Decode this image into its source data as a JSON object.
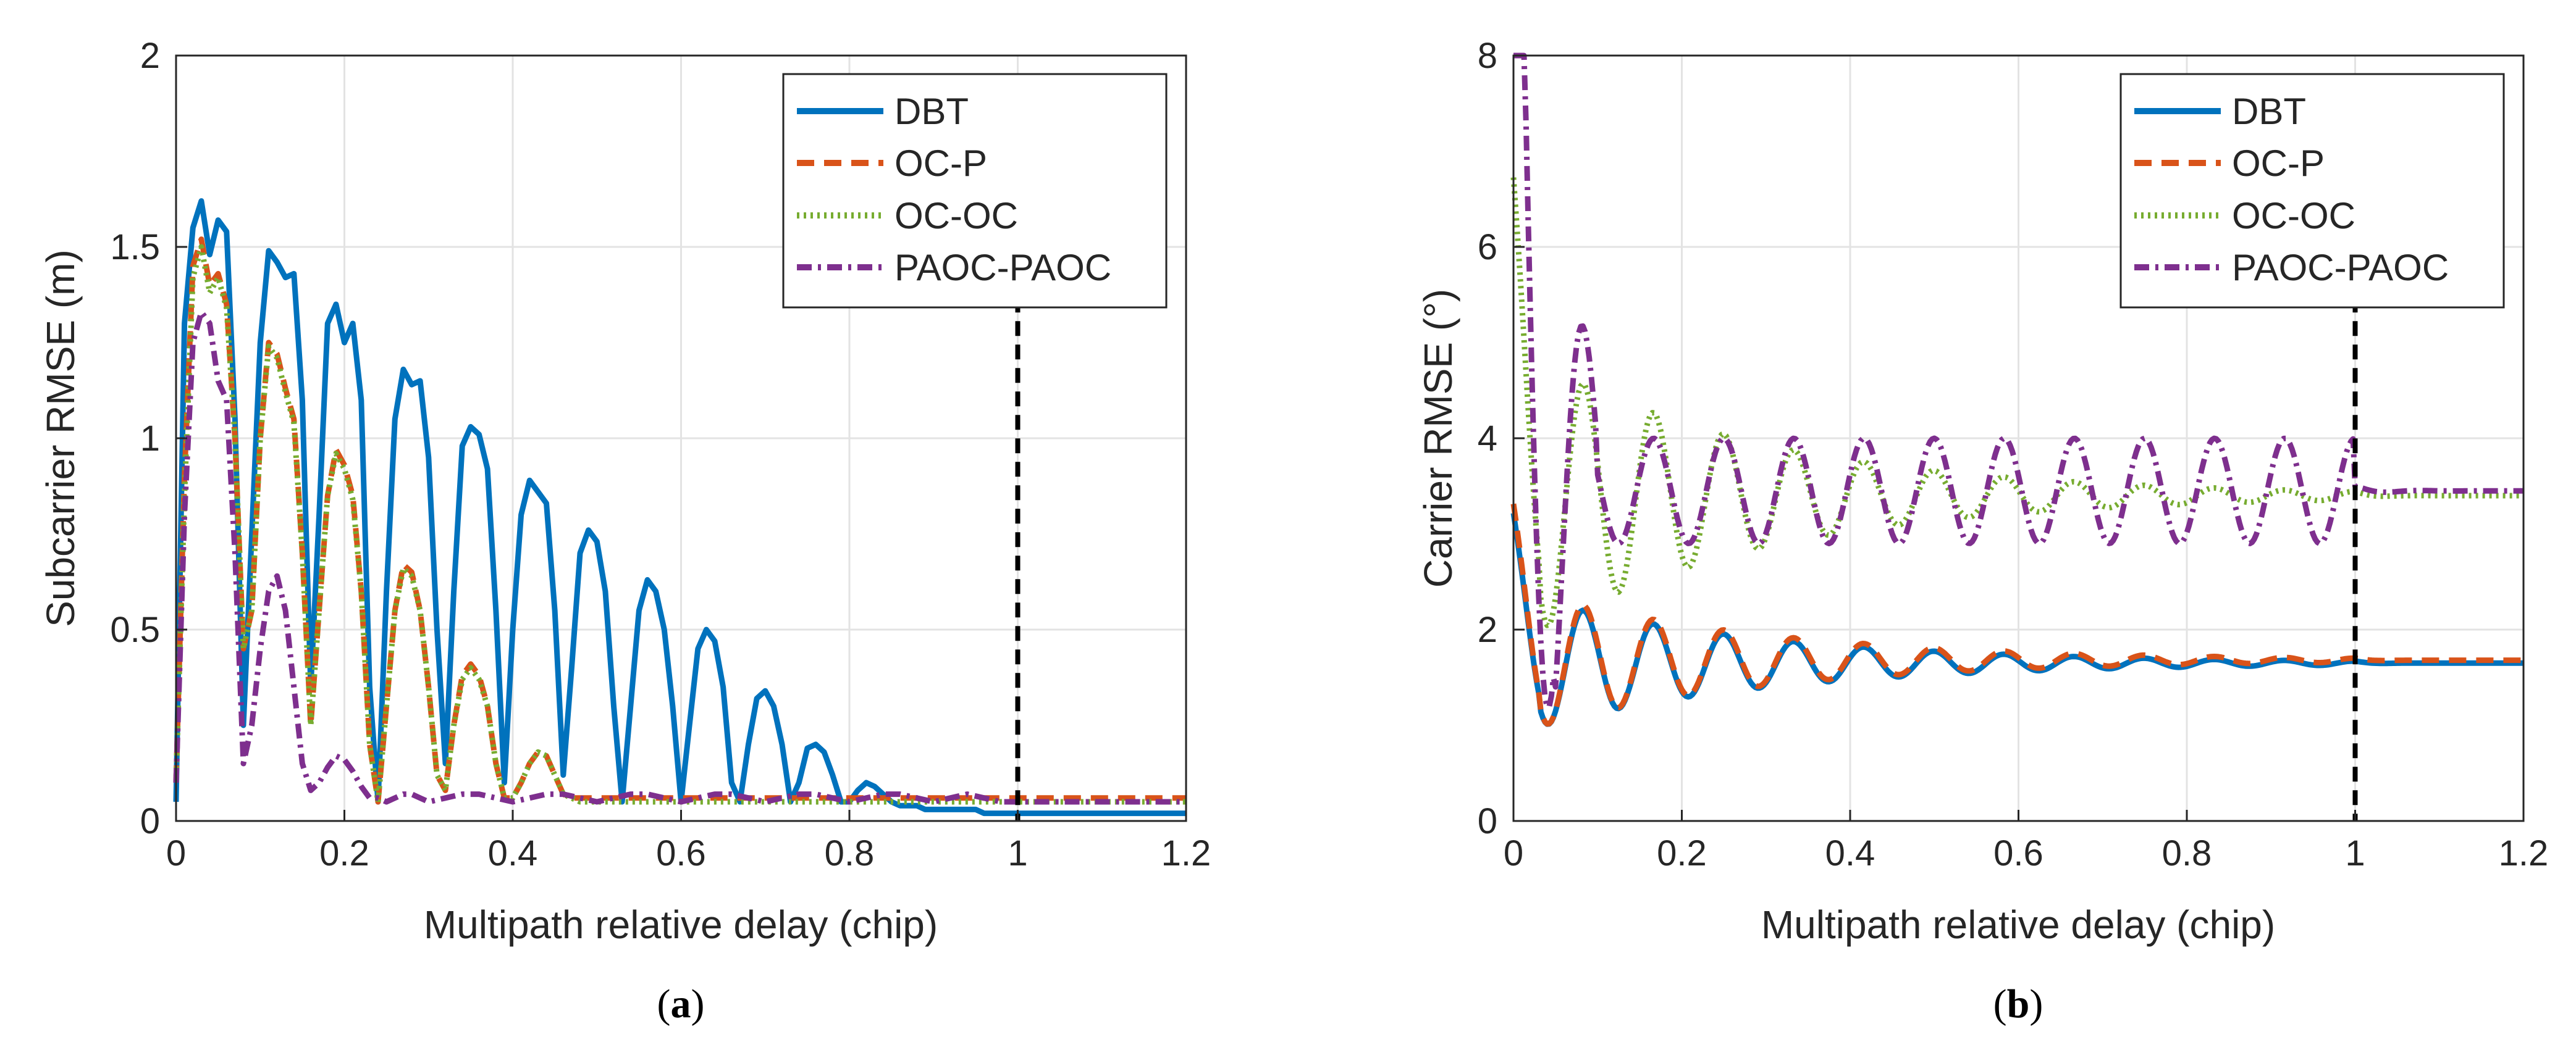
{
  "captions": [
    {
      "open": "(",
      "letter": "a",
      "close": ")"
    },
    {
      "open": "(",
      "letter": "b",
      "close": ")"
    }
  ],
  "chart_data": [
    {
      "type": "line",
      "title": "",
      "caption": "(a)",
      "xlabel": "Multipath relative delay (chip)",
      "ylabel": "Subcarrier RMSE (m)",
      "xlim": [
        0,
        1.2
      ],
      "ylim": [
        0,
        2
      ],
      "xticks": [
        0,
        0.2,
        0.4,
        0.6,
        0.8,
        1,
        1.2
      ],
      "xtick_labels": [
        "0",
        "0.2",
        "0.4",
        "0.6",
        "0.8",
        "1",
        "1.2"
      ],
      "yticks": [
        0,
        0.5,
        1,
        1.5,
        2
      ],
      "ytick_labels": [
        "0",
        "0.5",
        "1",
        "1.5",
        "2"
      ],
      "grid": true,
      "legend_position": "top-right",
      "vline": {
        "x": 1,
        "style": "dashed",
        "color": "#000000"
      },
      "series": [
        {
          "name": "DBT",
          "color": "#0072BD",
          "style": "solid",
          "x": [
            0,
            0.01,
            0.02,
            0.03,
            0.04,
            0.05,
            0.06,
            0.07,
            0.08,
            0.09,
            0.1,
            0.11,
            0.12,
            0.13,
            0.14,
            0.15,
            0.16,
            0.17,
            0.18,
            0.19,
            0.2,
            0.21,
            0.22,
            0.23,
            0.24,
            0.25,
            0.26,
            0.27,
            0.28,
            0.29,
            0.3,
            0.31,
            0.32,
            0.33,
            0.34,
            0.35,
            0.36,
            0.37,
            0.38,
            0.39,
            0.4,
            0.41,
            0.42,
            0.43,
            0.44,
            0.45,
            0.46,
            0.47,
            0.48,
            0.49,
            0.5,
            0.51,
            0.52,
            0.53,
            0.54,
            0.55,
            0.56,
            0.57,
            0.58,
            0.59,
            0.6,
            0.61,
            0.62,
            0.63,
            0.64,
            0.65,
            0.66,
            0.67,
            0.68,
            0.69,
            0.7,
            0.71,
            0.72,
            0.73,
            0.74,
            0.75,
            0.76,
            0.77,
            0.78,
            0.79,
            0.8,
            0.81,
            0.82,
            0.83,
            0.84,
            0.85,
            0.86,
            0.87,
            0.88,
            0.89,
            0.9,
            0.91,
            0.92,
            0.93,
            0.94,
            0.95,
            0.96,
            0.97,
            0.98,
            0.99,
            1,
            1.01,
            1.02,
            1.05,
            1.1,
            1.15,
            1.2
          ],
          "y": [
            0.05,
            1.3,
            1.55,
            1.62,
            1.48,
            1.57,
            1.54,
            1.05,
            0.25,
            0.75,
            1.25,
            1.49,
            1.46,
            1.42,
            1.43,
            1.1,
            0.35,
            0.8,
            1.3,
            1.35,
            1.25,
            1.3,
            1.1,
            0.35,
            0.05,
            0.6,
            1.05,
            1.18,
            1.14,
            1.15,
            0.95,
            0.5,
            0.15,
            0.6,
            0.98,
            1.03,
            1.01,
            0.92,
            0.55,
            0.1,
            0.5,
            0.8,
            0.89,
            0.86,
            0.83,
            0.55,
            0.12,
            0.4,
            0.7,
            0.76,
            0.73,
            0.6,
            0.3,
            0.05,
            0.3,
            0.55,
            0.63,
            0.6,
            0.5,
            0.3,
            0.05,
            0.25,
            0.45,
            0.5,
            0.47,
            0.35,
            0.1,
            0.05,
            0.2,
            0.32,
            0.34,
            0.3,
            0.2,
            0.05,
            0.1,
            0.19,
            0.2,
            0.18,
            0.12,
            0.05,
            0.05,
            0.08,
            0.1,
            0.09,
            0.07,
            0.05,
            0.04,
            0.04,
            0.04,
            0.03,
            0.03,
            0.03,
            0.03,
            0.03,
            0.03,
            0.03,
            0.02,
            0.02,
            0.02,
            0.02,
            0.02,
            0.02,
            0.02,
            0.02,
            0.02,
            0.02,
            0.02
          ]
        },
        {
          "name": "OC-P",
          "color": "#D95319",
          "style": "dashed",
          "x": [
            0,
            0.01,
            0.02,
            0.03,
            0.04,
            0.05,
            0.06,
            0.07,
            0.08,
            0.09,
            0.1,
            0.11,
            0.12,
            0.13,
            0.14,
            0.15,
            0.16,
            0.17,
            0.18,
            0.19,
            0.2,
            0.21,
            0.22,
            0.23,
            0.24,
            0.25,
            0.26,
            0.27,
            0.28,
            0.29,
            0.3,
            0.31,
            0.32,
            0.33,
            0.34,
            0.35,
            0.36,
            0.37,
            0.38,
            0.39,
            0.4,
            0.41,
            0.42,
            0.43,
            0.44,
            0.45,
            0.46,
            0.47,
            0.48,
            0.49,
            0.5,
            0.55,
            0.6,
            0.7,
            0.8,
            0.9,
            1,
            1.1,
            1.2
          ],
          "y": [
            0.1,
            0.9,
            1.45,
            1.52,
            1.4,
            1.43,
            1.35,
            1.0,
            0.45,
            0.55,
            1.0,
            1.25,
            1.22,
            1.13,
            1.05,
            0.7,
            0.25,
            0.55,
            0.85,
            0.97,
            0.93,
            0.85,
            0.6,
            0.2,
            0.05,
            0.3,
            0.55,
            0.67,
            0.65,
            0.55,
            0.35,
            0.12,
            0.08,
            0.25,
            0.38,
            0.41,
            0.38,
            0.3,
            0.15,
            0.06,
            0.06,
            0.1,
            0.15,
            0.18,
            0.17,
            0.12,
            0.07,
            0.06,
            0.06,
            0.06,
            0.06,
            0.06,
            0.06,
            0.06,
            0.06,
            0.06,
            0.06,
            0.06,
            0.06
          ]
        },
        {
          "name": "OC-OC",
          "color": "#77AC30",
          "style": "dotted",
          "x": [
            0,
            0.01,
            0.02,
            0.03,
            0.04,
            0.05,
            0.06,
            0.07,
            0.08,
            0.09,
            0.1,
            0.11,
            0.12,
            0.13,
            0.14,
            0.15,
            0.16,
            0.17,
            0.18,
            0.19,
            0.2,
            0.21,
            0.22,
            0.23,
            0.24,
            0.25,
            0.26,
            0.27,
            0.28,
            0.29,
            0.3,
            0.31,
            0.32,
            0.33,
            0.34,
            0.35,
            0.36,
            0.37,
            0.38,
            0.39,
            0.4,
            0.41,
            0.42,
            0.43,
            0.44,
            0.45,
            0.46,
            0.47,
            0.48,
            0.49,
            0.5,
            0.55,
            0.6,
            0.7,
            0.8,
            0.9,
            1,
            1.1,
            1.2
          ],
          "y": [
            0.1,
            0.85,
            1.42,
            1.5,
            1.38,
            1.42,
            1.34,
            1.0,
            0.45,
            0.55,
            1.0,
            1.24,
            1.21,
            1.12,
            1.04,
            0.7,
            0.25,
            0.55,
            0.85,
            0.96,
            0.92,
            0.84,
            0.6,
            0.2,
            0.05,
            0.3,
            0.55,
            0.66,
            0.64,
            0.55,
            0.35,
            0.12,
            0.08,
            0.25,
            0.37,
            0.4,
            0.37,
            0.3,
            0.15,
            0.06,
            0.06,
            0.1,
            0.15,
            0.18,
            0.17,
            0.12,
            0.07,
            0.06,
            0.05,
            0.05,
            0.05,
            0.05,
            0.05,
            0.05,
            0.05,
            0.05,
            0.05,
            0.05,
            0.05
          ]
        },
        {
          "name": "PAOC-PAOC",
          "color": "#7E2F8E",
          "style": "dashdot",
          "x": [
            0,
            0.01,
            0.02,
            0.03,
            0.04,
            0.05,
            0.06,
            0.07,
            0.08,
            0.09,
            0.1,
            0.11,
            0.12,
            0.13,
            0.14,
            0.15,
            0.16,
            0.17,
            0.18,
            0.19,
            0.2,
            0.21,
            0.22,
            0.23,
            0.24,
            0.25,
            0.26,
            0.27,
            0.28,
            0.29,
            0.3,
            0.32,
            0.34,
            0.36,
            0.38,
            0.4,
            0.42,
            0.44,
            0.46,
            0.48,
            0.5,
            0.52,
            0.54,
            0.56,
            0.58,
            0.6,
            0.62,
            0.64,
            0.66,
            0.68,
            0.7,
            0.72,
            0.74,
            0.76,
            0.78,
            0.8,
            0.82,
            0.84,
            0.86,
            0.88,
            0.9,
            0.92,
            0.94,
            0.96,
            0.98,
            1,
            1.1,
            1.2
          ],
          "y": [
            0.1,
            0.8,
            1.25,
            1.33,
            1.3,
            1.15,
            1.1,
            0.7,
            0.15,
            0.25,
            0.45,
            0.6,
            0.64,
            0.55,
            0.35,
            0.15,
            0.08,
            0.1,
            0.14,
            0.17,
            0.16,
            0.13,
            0.09,
            0.06,
            0.06,
            0.05,
            0.06,
            0.07,
            0.07,
            0.06,
            0.05,
            0.06,
            0.07,
            0.07,
            0.06,
            0.05,
            0.06,
            0.07,
            0.07,
            0.06,
            0.05,
            0.06,
            0.07,
            0.07,
            0.06,
            0.05,
            0.06,
            0.07,
            0.07,
            0.06,
            0.05,
            0.06,
            0.07,
            0.07,
            0.06,
            0.05,
            0.06,
            0.07,
            0.07,
            0.06,
            0.05,
            0.06,
            0.07,
            0.06,
            0.05,
            0.05,
            0.05,
            0.05
          ]
        }
      ]
    },
    {
      "type": "line",
      "title": "",
      "caption": "(b)",
      "xlabel": "Multipath relative delay (chip)",
      "ylabel": "Carrier RMSE (°)",
      "xlim": [
        0,
        1.2
      ],
      "ylim": [
        0,
        8
      ],
      "xticks": [
        0,
        0.2,
        0.4,
        0.6,
        0.8,
        1,
        1.2
      ],
      "xtick_labels": [
        "0",
        "0.2",
        "0.4",
        "0.6",
        "0.8",
        "1",
        "1.2"
      ],
      "yticks": [
        0,
        2,
        4,
        6,
        8
      ],
      "ytick_labels": [
        "0",
        "2",
        "4",
        "6",
        "8"
      ],
      "grid": true,
      "legend_position": "top-right",
      "vline": {
        "x": 1,
        "style": "dashed",
        "color": "#000000"
      },
      "series": [
        {
          "name": "DBT",
          "color": "#0072BD",
          "style": "solid",
          "model": "decaying-oscillation",
          "period": 0.0833,
          "base": 1.65,
          "start": 3.3
        },
        {
          "name": "OC-P",
          "color": "#D95319",
          "style": "dashed",
          "model": "decaying-oscillation",
          "period": 0.0833,
          "base": 1.68,
          "start": 3.4
        },
        {
          "name": "OC-OC",
          "color": "#77AC30",
          "style": "dotted",
          "model": "decaying-oscillation",
          "period": 0.0833,
          "base": 3.4,
          "start": 6.9
        },
        {
          "name": "PAOC-PAOC",
          "color": "#7E2F8E",
          "style": "dashdot",
          "model": "sustained-oscillation",
          "period": 0.0833,
          "base": 3.45,
          "start": 7.9
        }
      ]
    }
  ]
}
